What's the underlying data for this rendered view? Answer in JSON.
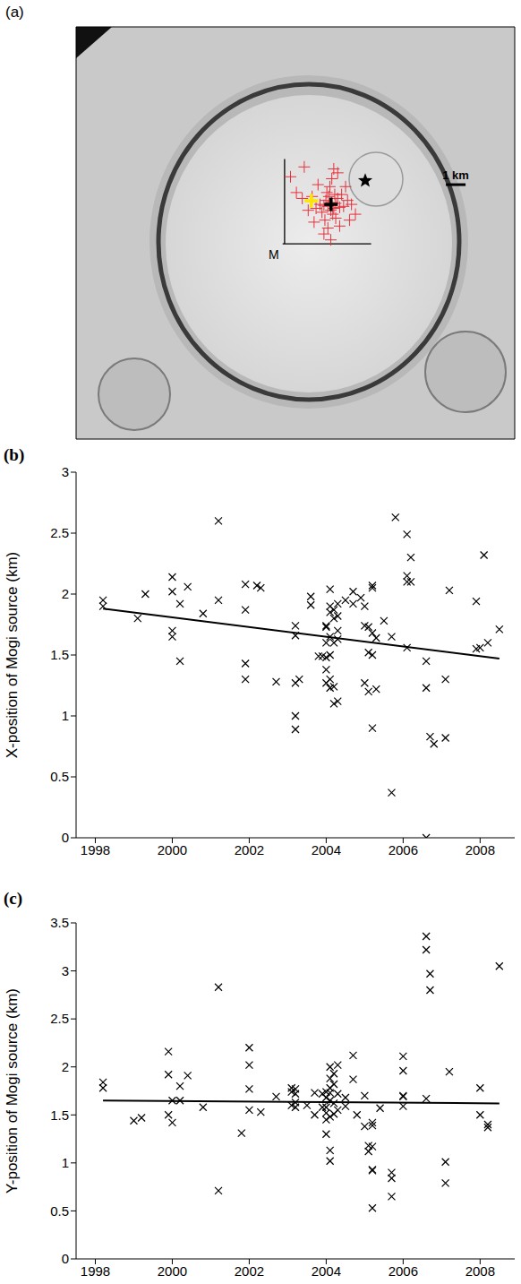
{
  "chart_data": [
    {
      "type": "scatter",
      "label": "(a)",
      "tick_labels": false,
      "xlim": [
        -10.6,
        11.7
      ],
      "ylim": [
        -9.9,
        11
      ],
      "annotations": [
        {
          "text": "M",
          "x": 0,
          "y": 0
        }
      ],
      "scale_bar": {
        "length": 1,
        "label": "1 km"
      },
      "series": [
        {
          "type": "line",
          "color": "#000000",
          "x": [
            0,
            0
          ],
          "values": [
            0,
            4.3
          ]
        },
        {
          "type": "line",
          "color": "#000000",
          "x": [
            -0.1,
            4.4
          ],
          "values": [
            0,
            0
          ]
        },
        {
          "type": "scatter",
          "color": "#e8303a",
          "marker": "cross",
          "x": [
            2.3,
            2.4,
            2.2,
            2.5,
            2.1,
            2.6,
            2.35,
            2.0,
            2.7,
            2.25,
            1.9,
            2.8,
            2.45,
            2.15,
            2.55,
            1.8,
            3.0,
            2.3,
            1.6,
            2.9,
            2.05,
            3.2,
            1.4,
            2.6,
            2.4,
            1.2,
            3.4,
            2.2,
            0.9,
            3.6,
            2.5,
            1.7,
            2.8,
            0.6,
            3.1,
            2.0,
            1.5,
            2.7,
            0.3,
            3.3,
            2.35,
            1.0
          ],
          "values": [
            2.0,
            2.1,
            1.9,
            1.8,
            2.2,
            2.05,
            1.7,
            1.95,
            2.3,
            2.4,
            1.6,
            1.85,
            1.5,
            2.6,
            2.5,
            2.0,
            1.9,
            2.9,
            1.8,
            2.5,
            1.2,
            2.2,
            2.4,
            1.3,
            3.3,
            1.7,
            2.0,
            0.8,
            2.3,
            1.5,
            3.8,
            3.0,
            0.9,
            2.6,
            2.9,
            0.5,
            1.1,
            3.6,
            3.4,
            1.2,
            0.2,
            3.9
          ]
        },
        {
          "type": "scatter",
          "color": "#ffe600",
          "marker": "cross",
          "x": [
            1.36
          ],
          "values": [
            2.18
          ]
        },
        {
          "type": "scatter",
          "color": "#000000",
          "marker": "cross",
          "x": [
            2.36
          ],
          "values": [
            2.0
          ]
        },
        {
          "type": "scatter",
          "color": "#000000",
          "marker": "star",
          "x": [
            4.1
          ],
          "values": [
            3.2
          ]
        }
      ]
    },
    {
      "type": "scatter",
      "label": "(b)",
      "ylabel": "X-position of Mogi source (km)",
      "xlim": [
        1997.5,
        2008.9
      ],
      "ylim": [
        0,
        3
      ],
      "xticks": [
        1998,
        2000,
        2002,
        2004,
        2006,
        2008
      ],
      "yticks": [
        0,
        0.5,
        1,
        1.5,
        2,
        2.5,
        3
      ],
      "series": [
        {
          "type": "scatter",
          "color": "#000000",
          "marker": "x",
          "x": [
            1998.2,
            1998.2,
            1999.1,
            1999.3,
            2000.0,
            2000.0,
            2000.0,
            2000.0,
            2000.2,
            2000.2,
            2000.4,
            2000.8,
            2001.2,
            2001.2,
            2001.9,
            2001.9,
            2001.9,
            2001.9,
            2002.2,
            2002.3,
            2002.7,
            2003.2,
            2003.2,
            2003.2,
            2003.2,
            2003.2,
            2003.3,
            2003.6,
            2003.6,
            2003.8,
            2003.9,
            2004.0,
            2004.0,
            2004.0,
            2004.0,
            2004.0,
            2004.0,
            2004.1,
            2004.1,
            2004.1,
            2004.1,
            2004.1,
            2004.1,
            2004.1,
            2004.2,
            2004.2,
            2004.2,
            2004.2,
            2004.2,
            2004.3,
            2004.3,
            2004.3,
            2004.3,
            2004.3,
            2004.5,
            2004.7,
            2004.7,
            2004.9,
            2005.0,
            2005.0,
            2005.0,
            2005.1,
            2005.1,
            2005.1,
            2005.2,
            2005.2,
            2005.2,
            2005.2,
            2005.2,
            2005.3,
            2005.3,
            2005.5,
            2005.7,
            2005.7,
            2005.8,
            2006.1,
            2006.1,
            2006.1,
            2006.1,
            2006.2,
            2006.2,
            2006.6,
            2006.6,
            2006.6,
            2006.7,
            2006.8,
            2007.1,
            2007.1,
            2007.2,
            2007.9,
            2007.9,
            2008.0,
            2008.1,
            2008.2,
            2008.5
          ],
          "values": [
            1.95,
            1.9,
            1.8,
            2.0,
            2.14,
            2.02,
            1.7,
            1.65,
            1.45,
            1.92,
            2.06,
            1.84,
            2.6,
            1.95,
            2.08,
            1.87,
            1.43,
            1.3,
            2.07,
            2.05,
            1.28,
            1.74,
            1.66,
            1.27,
            1.0,
            0.89,
            1.3,
            1.98,
            1.91,
            1.49,
            1.49,
            1.74,
            1.73,
            1.6,
            1.48,
            1.38,
            1.27,
            2.04,
            1.9,
            1.85,
            1.65,
            1.5,
            1.3,
            1.23,
            1.87,
            1.8,
            1.6,
            1.24,
            1.1,
            1.92,
            1.82,
            1.7,
            1.63,
            1.12,
            1.95,
            2.02,
            1.92,
            1.97,
            1.9,
            1.74,
            1.27,
            1.73,
            1.52,
            1.2,
            2.07,
            2.05,
            1.68,
            1.5,
            0.9,
            1.64,
            1.22,
            1.78,
            1.65,
            0.37,
            2.63,
            2.49,
            2.15,
            2.1,
            1.56,
            2.3,
            2.1,
            1.23,
            1.45,
            0.0,
            0.83,
            0.77,
            1.3,
            0.82,
            2.03,
            1.94,
            1.55,
            1.56,
            2.32,
            1.6,
            1.71
          ]
        },
        {
          "type": "line",
          "color": "#000000",
          "x": [
            1998.2,
            2008.5
          ],
          "values": [
            1.88,
            1.47
          ]
        }
      ]
    },
    {
      "type": "scatter",
      "label": "(c)",
      "ylabel": "Y-position of Mogi source (km)",
      "xlim": [
        1997.5,
        2008.9
      ],
      "ylim": [
        0,
        3.5
      ],
      "xticks": [
        1998,
        2000,
        2002,
        2004,
        2006,
        2008
      ],
      "yticks": [
        0,
        0.5,
        1,
        1.5,
        2,
        2.5,
        3,
        3.5
      ],
      "series": [
        {
          "type": "scatter",
          "color": "#000000",
          "marker": "x",
          "x": [
            1998.2,
            1998.2,
            1999.0,
            1999.2,
            1999.9,
            1999.9,
            1999.9,
            2000.0,
            2000.0,
            2000.2,
            2000.2,
            2000.4,
            2000.8,
            2001.2,
            2001.2,
            2001.8,
            2002.0,
            2002.0,
            2002.0,
            2002.0,
            2002.3,
            2002.7,
            2003.1,
            2003.1,
            2003.1,
            2003.2,
            2003.2,
            2003.2,
            2003.2,
            2003.5,
            2003.7,
            2003.7,
            2003.9,
            2003.9,
            2004.0,
            2004.0,
            2004.0,
            2004.0,
            2004.0,
            2004.0,
            2004.1,
            2004.1,
            2004.1,
            2004.1,
            2004.1,
            2004.1,
            2004.1,
            2004.1,
            2004.2,
            2004.2,
            2004.2,
            2004.2,
            2004.3,
            2004.3,
            2004.3,
            2004.5,
            2004.5,
            2004.7,
            2004.7,
            2004.8,
            2005.0,
            2005.0,
            2005.1,
            2005.1,
            2005.2,
            2005.2,
            2005.2,
            2005.2,
            2005.2,
            2005.2,
            2005.4,
            2005.7,
            2005.7,
            2005.7,
            2006.0,
            2006.0,
            2006.0,
            2006.0,
            2006.0,
            2006.6,
            2006.6,
            2006.6,
            2006.7,
            2006.7,
            2007.1,
            2007.1,
            2007.2,
            2008.0,
            2008.0,
            2008.2,
            2008.2,
            2008.5
          ],
          "values": [
            1.84,
            1.78,
            1.44,
            1.47,
            2.16,
            1.92,
            1.5,
            1.65,
            1.42,
            1.8,
            1.65,
            1.91,
            1.58,
            2.83,
            0.71,
            1.31,
            2.2,
            2.02,
            1.77,
            1.55,
            1.53,
            1.69,
            1.78,
            1.74,
            1.6,
            1.77,
            1.72,
            1.63,
            1.58,
            1.6,
            1.73,
            1.5,
            1.72,
            1.58,
            1.74,
            1.68,
            1.58,
            1.52,
            1.45,
            1.3,
            2.0,
            1.88,
            1.78,
            1.73,
            1.65,
            1.48,
            1.13,
            1.02,
            1.93,
            1.82,
            1.62,
            1.51,
            2.02,
            1.72,
            1.55,
            1.59,
            1.68,
            2.12,
            1.87,
            1.5,
            1.38,
            1.7,
            1.18,
            1.12,
            1.42,
            1.39,
            0.93,
            0.92,
            1.17,
            0.53,
            1.57,
            0.9,
            0.84,
            0.65,
            2.11,
            1.96,
            1.7,
            1.69,
            1.59,
            3.36,
            3.22,
            1.67,
            2.97,
            2.8,
            1.01,
            0.79,
            1.95,
            1.78,
            1.5,
            1.4,
            1.37,
            3.05
          ]
        },
        {
          "type": "line",
          "color": "#000000",
          "x": [
            1998.2,
            2008.5
          ],
          "values": [
            1.65,
            1.62
          ]
        }
      ]
    }
  ]
}
